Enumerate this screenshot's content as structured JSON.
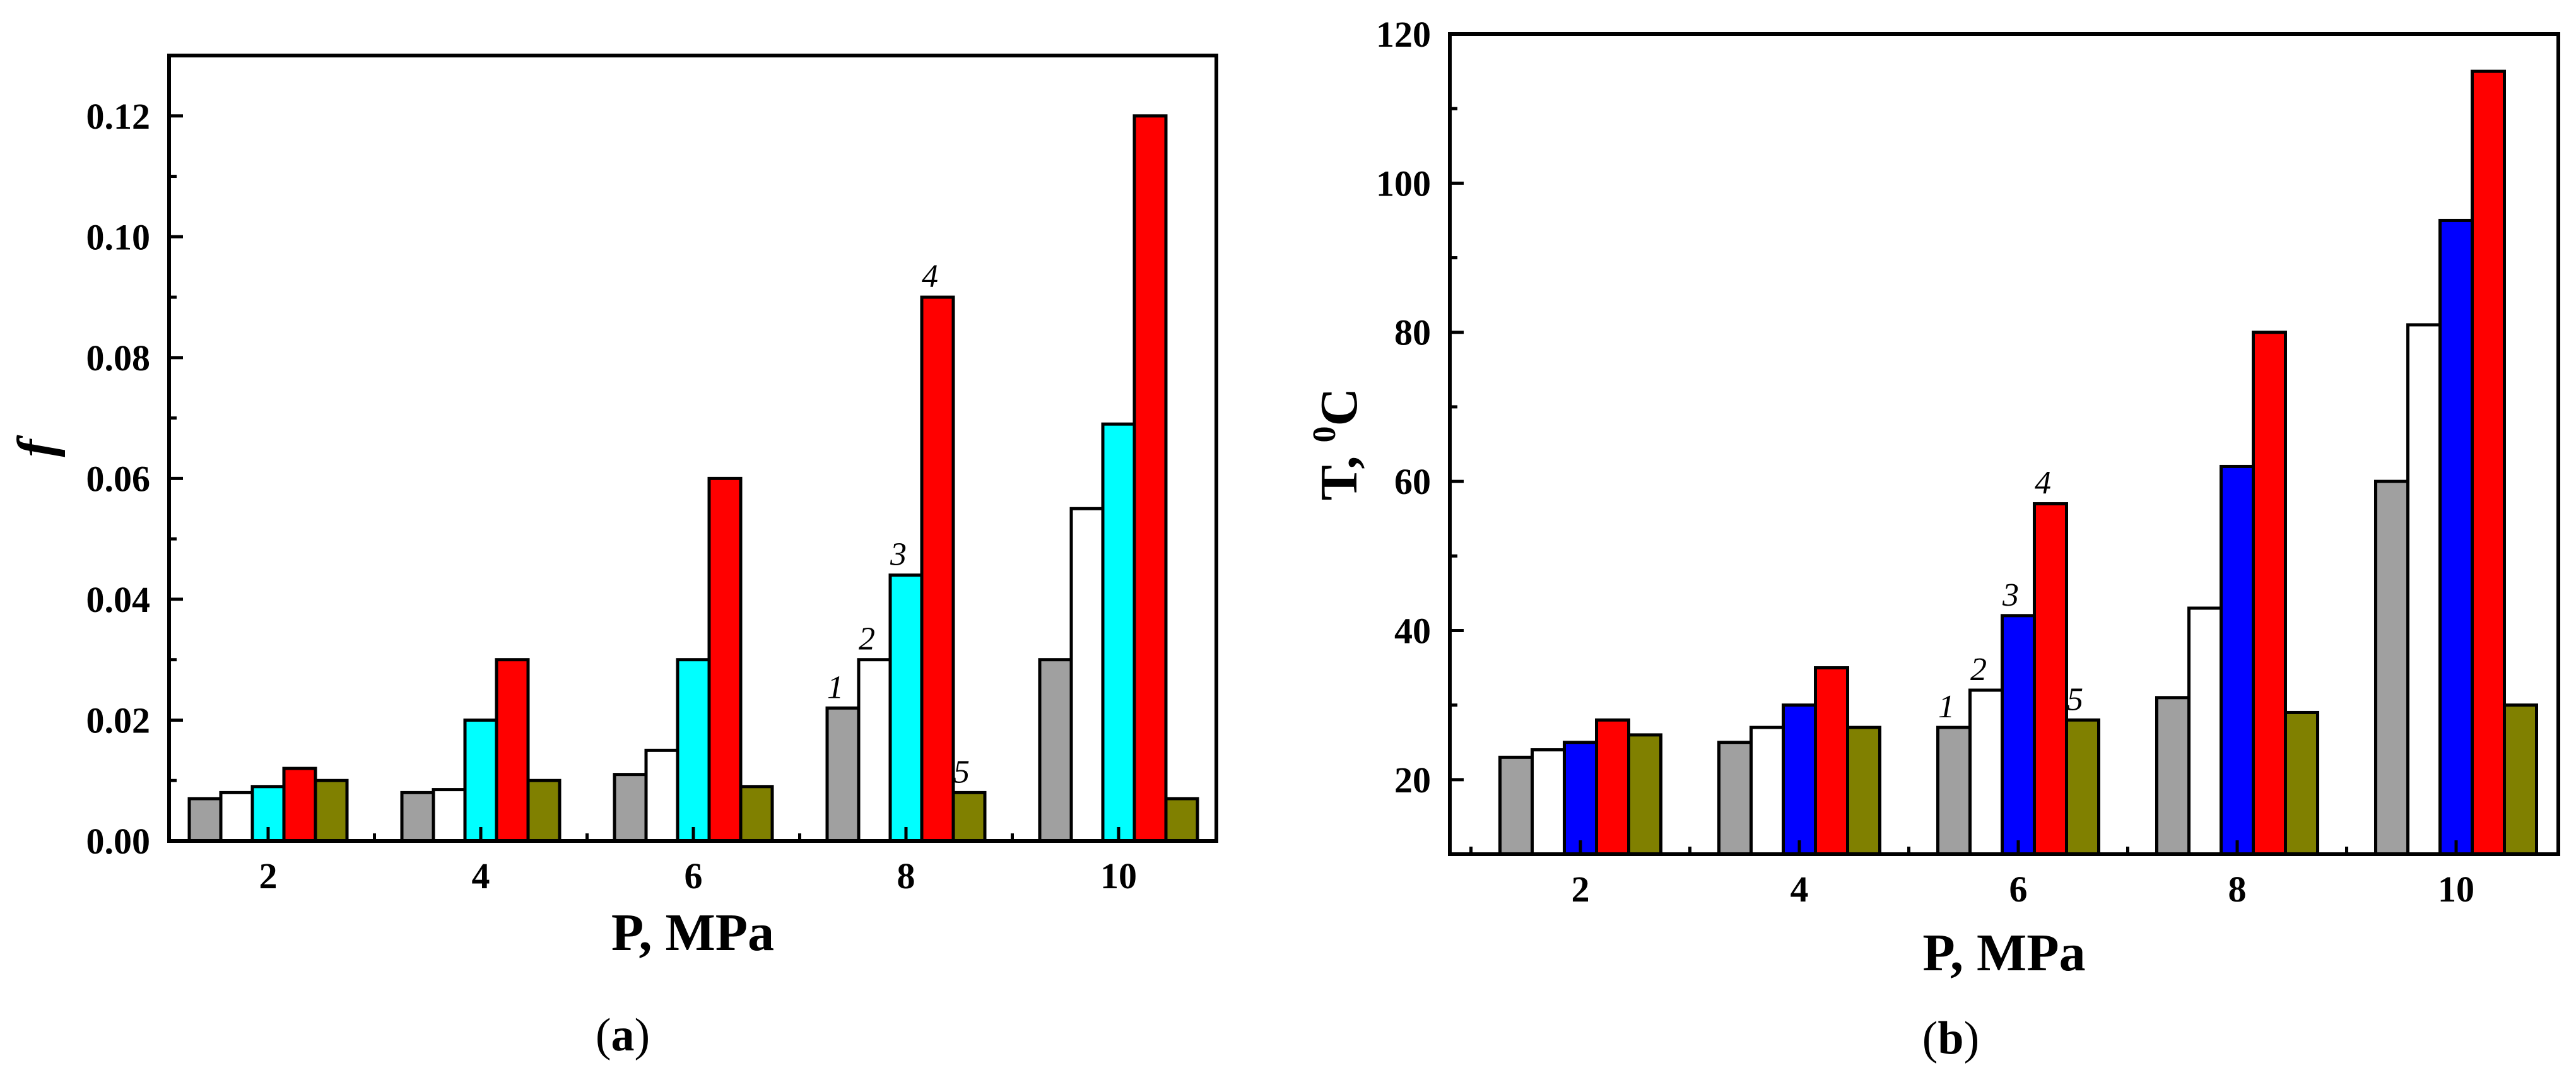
{
  "chart_data": [
    {
      "type": "bar",
      "panel_label": {
        "open": "(",
        "letter": "a",
        "close": ")"
      },
      "xlabel": "P, MPa",
      "ylabel": "f",
      "ylim": [
        0,
        0.13
      ],
      "yticks": [
        "0.00",
        "0.02",
        "0.04",
        "0.06",
        "0.08",
        "0.10",
        "0.12"
      ],
      "ytick_values": [
        0,
        0.02,
        0.04,
        0.06,
        0.08,
        0.1,
        0.12
      ],
      "categories": [
        "2",
        "4",
        "6",
        "8",
        "10"
      ],
      "series": [
        {
          "name": "1",
          "color": "#a0a0a0",
          "values": [
            0.007,
            0.008,
            0.011,
            0.022,
            0.03
          ]
        },
        {
          "name": "2",
          "color": "#ffffff",
          "values": [
            0.008,
            0.0085,
            0.015,
            0.03,
            0.055
          ]
        },
        {
          "name": "3",
          "color": "#00ffff",
          "values": [
            0.009,
            0.02,
            0.03,
            0.044,
            0.069
          ]
        },
        {
          "name": "4",
          "color": "#ff0000",
          "values": [
            0.012,
            0.03,
            0.06,
            0.09,
            0.12
          ]
        },
        {
          "name": "5",
          "color": "#808000",
          "values": [
            0.01,
            0.01,
            0.009,
            0.008,
            0.007
          ]
        }
      ],
      "annotated_group": "8",
      "legend": "inline numeric labels above bars of the P = 8 group"
    },
    {
      "type": "bar",
      "panel_label": {
        "open": "(",
        "letter": "b",
        "close": ")"
      },
      "xlabel": "P, MPa",
      "ylabel_main": "T, ",
      "ylabel_sup": "0",
      "ylabel_unit": "C",
      "ylim": [
        10,
        120
      ],
      "yticks": [
        "20",
        "40",
        "60",
        "80",
        "100",
        "120"
      ],
      "ytick_values": [
        20,
        40,
        60,
        80,
        100,
        120
      ],
      "categories": [
        "2",
        "4",
        "6",
        "8",
        "10"
      ],
      "series": [
        {
          "name": "1",
          "color": "#a0a0a0",
          "values": [
            23,
            25,
            27,
            31,
            60
          ]
        },
        {
          "name": "2",
          "color": "#ffffff",
          "values": [
            24,
            27,
            32,
            43,
            81
          ]
        },
        {
          "name": "3",
          "color": "#0000ff",
          "values": [
            25,
            30,
            42,
            62,
            95
          ]
        },
        {
          "name": "4",
          "color": "#ff0000",
          "values": [
            28,
            35,
            57,
            80,
            115
          ]
        },
        {
          "name": "5",
          "color": "#808000",
          "values": [
            26,
            27,
            28,
            29,
            30
          ]
        }
      ],
      "annotated_group": "6",
      "legend": "inline numeric labels above bars of the P = 6 group"
    }
  ]
}
